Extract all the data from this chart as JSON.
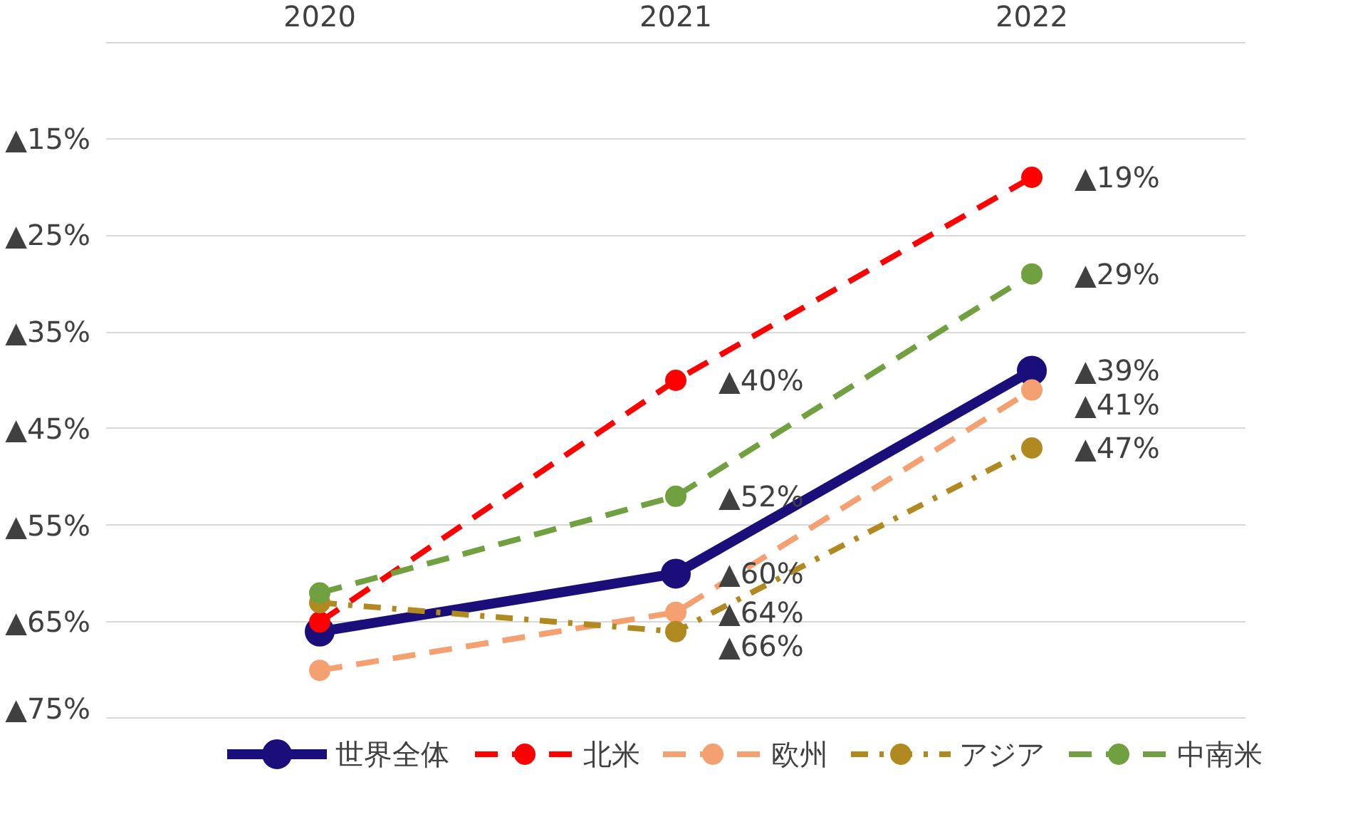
{
  "chart_data": {
    "type": "line",
    "categories": [
      "2020",
      "2021",
      "2022"
    ],
    "series": [
      {
        "name": "世界全体",
        "color": "#1a0f7a",
        "line_style": "solid",
        "values": [
          66,
          60,
          39
        ],
        "value_labels": [
          null,
          "▲60%",
          "▲39%"
        ]
      },
      {
        "name": "北米",
        "color": "#ff0000",
        "line_style": "dashed",
        "values": [
          65,
          40,
          19
        ],
        "value_labels": [
          null,
          "▲40%",
          "▲19%"
        ]
      },
      {
        "name": "欧州",
        "color": "#f4a070",
        "line_style": "dashed",
        "values": [
          70,
          64,
          41
        ],
        "value_labels": [
          null,
          "▲64%",
          "▲41%"
        ]
      },
      {
        "name": "アジア",
        "color": "#b08a20",
        "line_style": "dotted",
        "values": [
          63,
          66,
          47
        ],
        "value_labels": [
          null,
          "▲66%",
          "▲47%"
        ]
      },
      {
        "name": "中南米",
        "color": "#70a040",
        "line_style": "dashed",
        "values": [
          62,
          52,
          29
        ],
        "value_labels": [
          null,
          "▲52%",
          "▲29%"
        ]
      }
    ],
    "ylim": [
      75,
      5
    ],
    "yticks": [
      {
        "value": 5,
        "label": null
      },
      {
        "value": 15,
        "label": "▲15%"
      },
      {
        "value": 25,
        "label": "▲25%"
      },
      {
        "value": 35,
        "label": "▲35%"
      },
      {
        "value": 45,
        "label": "▲45%"
      },
      {
        "value": 55,
        "label": "▲55%"
      },
      {
        "value": 65,
        "label": "▲65%"
      },
      {
        "value": 75,
        "label": "▲75%"
      }
    ],
    "grid": "y",
    "legend": "bottom",
    "marker": "circle"
  }
}
